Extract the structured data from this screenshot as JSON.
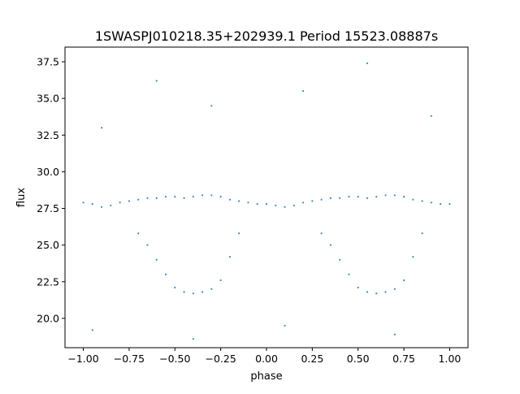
{
  "chart_data": {
    "type": "scatter",
    "title": "1SWASPJ010218.35+202939.1 Period 15523.08887s",
    "xlabel": "phase",
    "ylabel": "flux",
    "xlim": [
      -1.1,
      1.1
    ],
    "ylim": [
      18.0,
      38.5
    ],
    "x_ticks": [
      -1.0,
      -0.75,
      -0.5,
      -0.25,
      0.0,
      0.25,
      0.5,
      0.75,
      1.0
    ],
    "x_tick_labels": [
      "−1.00",
      "−0.75",
      "−0.50",
      "−0.25",
      "0.00",
      "0.25",
      "0.50",
      "0.75",
      "1.00"
    ],
    "y_ticks": [
      20.0,
      22.5,
      25.0,
      27.5,
      30.0,
      32.5,
      35.0,
      37.5
    ],
    "y_tick_labels": [
      "20.0",
      "22.5",
      "25.0",
      "27.5",
      "30.0",
      "32.5",
      "35.0",
      "37.5"
    ],
    "grid": false,
    "legend": "none",
    "marker_color": "#1f77b4",
    "series": [
      {
        "points": [
          [
            -1.0,
            27.9
          ],
          [
            -0.95,
            27.8
          ],
          [
            -0.9,
            27.6
          ],
          [
            -0.85,
            27.7
          ],
          [
            -0.8,
            27.9
          ],
          [
            -0.75,
            28.0
          ],
          [
            -0.7,
            28.1
          ],
          [
            -0.65,
            28.2
          ],
          [
            -0.6,
            28.2
          ],
          [
            -0.55,
            28.3
          ],
          [
            -0.5,
            28.3
          ],
          [
            -0.45,
            28.2
          ],
          [
            -0.4,
            28.3
          ],
          [
            -0.35,
            28.4
          ],
          [
            -0.3,
            28.4
          ],
          [
            -0.25,
            28.3
          ],
          [
            -0.2,
            28.1
          ],
          [
            -0.15,
            28.0
          ],
          [
            -0.1,
            27.9
          ],
          [
            -0.05,
            27.8
          ],
          [
            0.0,
            27.8
          ],
          [
            0.05,
            27.7
          ],
          [
            0.1,
            27.6
          ],
          [
            0.15,
            27.7
          ],
          [
            0.2,
            27.9
          ],
          [
            0.25,
            28.0
          ],
          [
            0.3,
            28.1
          ],
          [
            0.35,
            28.2
          ],
          [
            0.4,
            28.2
          ],
          [
            0.45,
            28.3
          ],
          [
            0.5,
            28.3
          ],
          [
            0.55,
            28.2
          ],
          [
            0.6,
            28.3
          ],
          [
            0.65,
            28.4
          ],
          [
            0.7,
            28.4
          ],
          [
            0.75,
            28.3
          ],
          [
            0.8,
            28.1
          ],
          [
            0.85,
            28.0
          ],
          [
            0.9,
            27.9
          ],
          [
            0.95,
            27.8
          ],
          [
            1.0,
            27.8
          ],
          [
            -0.7,
            25.8
          ],
          [
            -0.65,
            25.0
          ],
          [
            -0.6,
            24.0
          ],
          [
            -0.55,
            23.0
          ],
          [
            -0.5,
            22.1
          ],
          [
            -0.45,
            21.8
          ],
          [
            -0.4,
            21.7
          ],
          [
            -0.35,
            21.8
          ],
          [
            -0.3,
            22.0
          ],
          [
            -0.25,
            22.6
          ],
          [
            -0.2,
            24.2
          ],
          [
            -0.15,
            25.8
          ],
          [
            0.3,
            25.8
          ],
          [
            0.35,
            25.0
          ],
          [
            0.4,
            24.0
          ],
          [
            0.45,
            23.0
          ],
          [
            0.5,
            22.1
          ],
          [
            0.55,
            21.8
          ],
          [
            0.6,
            21.7
          ],
          [
            0.65,
            21.8
          ],
          [
            0.7,
            22.0
          ],
          [
            0.75,
            22.6
          ],
          [
            0.8,
            24.2
          ],
          [
            0.85,
            25.8
          ],
          [
            -0.9,
            33.0
          ],
          [
            -0.6,
            36.2
          ],
          [
            -0.3,
            34.5
          ],
          [
            0.2,
            35.5
          ],
          [
            0.55,
            37.4
          ],
          [
            0.9,
            33.8
          ],
          [
            -0.95,
            19.2
          ],
          [
            -0.4,
            18.6
          ],
          [
            0.1,
            19.5
          ],
          [
            0.7,
            18.9
          ]
        ]
      }
    ]
  }
}
